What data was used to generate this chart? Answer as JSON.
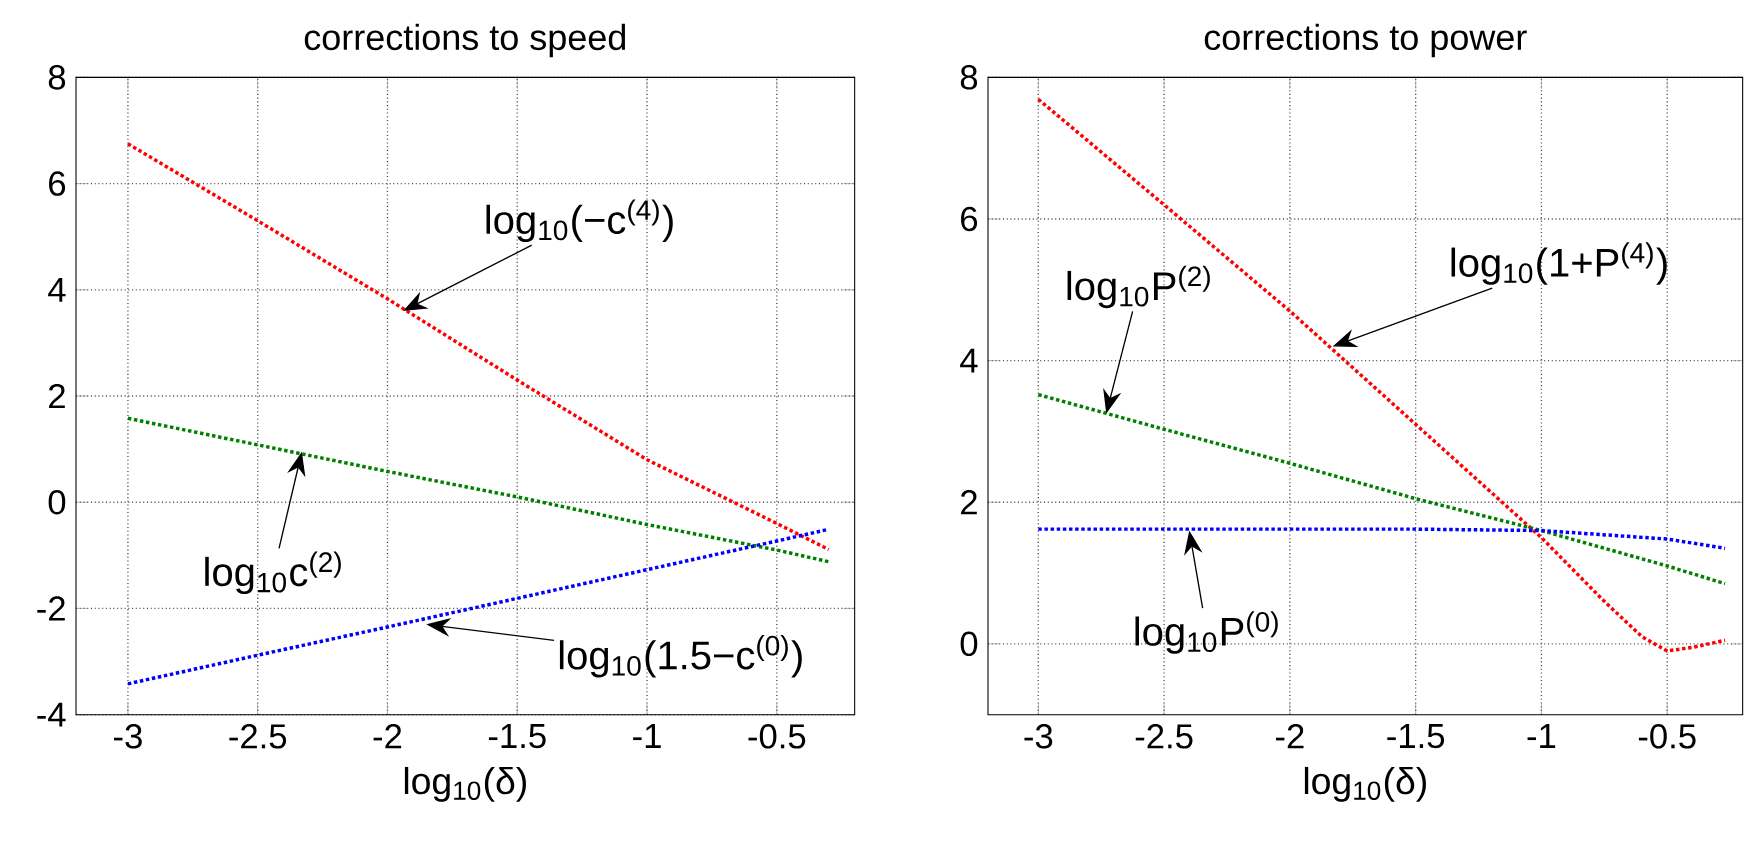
{
  "chart_data": [
    {
      "type": "line",
      "title": "corrections to speed",
      "xlabel": "log$_{10}$(δ)",
      "xlim": [
        -3.2,
        -0.2
      ],
      "ylim": [
        -4,
        8
      ],
      "xticks": [
        -3,
        -2.5,
        -2,
        -1.5,
        -1,
        -0.5
      ],
      "yticks": [
        -4,
        -2,
        0,
        2,
        4,
        6,
        8
      ],
      "grid": true,
      "line_style": "dotted",
      "marker": "none",
      "series": [
        {
          "color": "#ff0000",
          "x": [
            -3,
            -2.5,
            -2,
            -1.5,
            -1,
            -0.5,
            -0.3
          ],
          "values": [
            6.75,
            5.3,
            3.83,
            2.3,
            0.8,
            -0.4,
            -0.89
          ]
        },
        {
          "color": "#008000",
          "x": [
            -3,
            -2.5,
            -2,
            -1.5,
            -1,
            -0.5,
            -0.3
          ],
          "values": [
            1.58,
            1.08,
            0.58,
            0.1,
            -0.42,
            -0.9,
            -1.12
          ]
        },
        {
          "color": "#0000ff",
          "x": [
            -3,
            -2.5,
            -2,
            -1.5,
            -1,
            -0.5,
            -0.3
          ],
          "values": [
            -3.42,
            -2.88,
            -2.35,
            -1.81,
            -1.27,
            -0.73,
            -0.51
          ]
        }
      ],
      "annotations": [
        {
          "text": "log$_{10}$(−c$^{(4)}$)",
          "x": -1.94,
          "y": 3.6
        },
        {
          "text": "log$_{10}$c$^{(2)}$",
          "x": -2.33,
          "y": 0.95
        },
        {
          "text": "log$_{10}$(1.5−c$^{(0)}$)",
          "x": -1.85,
          "y": -2.3
        }
      ]
    },
    {
      "type": "line",
      "title": "corrections to power",
      "xlabel": "log$_{10}$(δ)",
      "xlim": [
        -3.2,
        -0.2
      ],
      "ylim": [
        -1,
        8
      ],
      "xticks": [
        -3,
        -2.5,
        -2,
        -1.5,
        -1,
        -0.5
      ],
      "yticks": [
        0,
        2,
        4,
        6,
        8
      ],
      "grid": true,
      "line_style": "dotted",
      "marker": "none",
      "series": [
        {
          "color": "#ff0000",
          "x": [
            -3,
            -2.5,
            -2,
            -1.5,
            -1,
            -0.75,
            -0.6,
            -0.5,
            -0.4,
            -0.27
          ],
          "values": [
            7.69,
            6.2,
            4.7,
            3.1,
            1.5,
            0.6,
            0.1,
            -0.1,
            -0.05,
            0.05
          ]
        },
        {
          "color": "#008000",
          "x": [
            -3,
            -2.5,
            -2,
            -1.5,
            -1,
            -0.5,
            -0.27
          ],
          "values": [
            3.52,
            3.03,
            2.55,
            2.05,
            1.6,
            1.1,
            0.85
          ]
        },
        {
          "color": "#0000ff",
          "x": [
            -3,
            -2.5,
            -2,
            -1.5,
            -1,
            -0.5,
            -0.27
          ],
          "values": [
            1.62,
            1.62,
            1.62,
            1.62,
            1.6,
            1.48,
            1.35
          ]
        }
      ],
      "annotations": [
        {
          "text": "log$_{10}$(1+P$^{(4)}$)",
          "x": -1.83,
          "y": 4.2
        },
        {
          "text": "log$_{10}$P$^{(2)}$",
          "x": -2.73,
          "y": 3.25
        },
        {
          "text": "log$_{10}$P$^{(0)}$",
          "x": -2.4,
          "y": 1.6
        }
      ]
    }
  ]
}
